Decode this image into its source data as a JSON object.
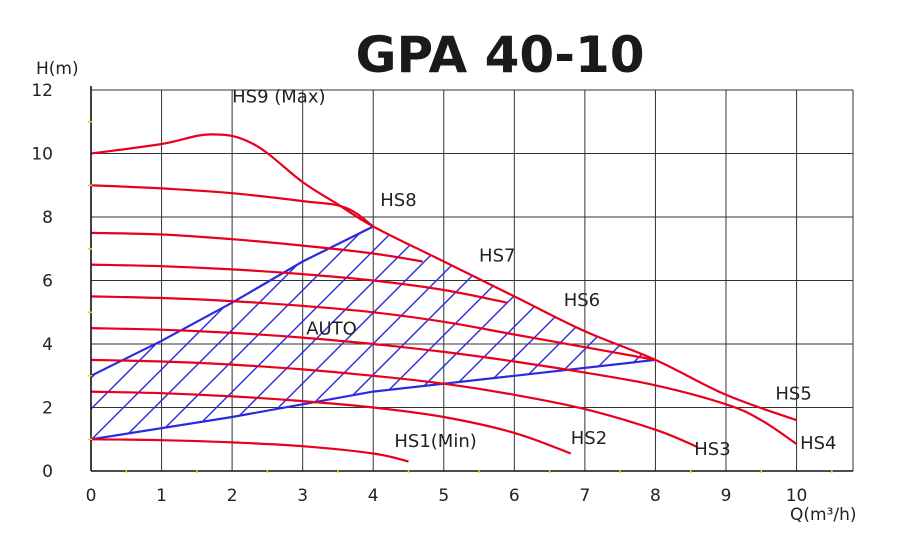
{
  "chart_data": {
    "type": "line",
    "title": "GPA 40-10",
    "xlabel": "Q(m³/h)",
    "ylabel": "H(m)",
    "xlim": [
      0,
      10.8
    ],
    "ylim": [
      0,
      12
    ],
    "x_ticks": [
      0,
      1,
      2,
      3,
      4,
      5,
      6,
      7,
      8,
      9,
      10
    ],
    "y_ticks": [
      0,
      2,
      4,
      6,
      8,
      10,
      12
    ],
    "grid": true,
    "colors": {
      "curves": "#e8001c",
      "auto": "#2a2ae0",
      "grid": "#333333",
      "axis": "#111111",
      "minor_mark": "#e6d800"
    },
    "series": [
      {
        "name": "HS9 (Max)",
        "points": [
          [
            0,
            10
          ],
          [
            1,
            10.3
          ],
          [
            1.7,
            10.6
          ],
          [
            2.3,
            10.3
          ],
          [
            3,
            9.1
          ],
          [
            3.5,
            8.4
          ],
          [
            4,
            7.7
          ],
          [
            5,
            6.6
          ],
          [
            6,
            5.5
          ],
          [
            7,
            4.4
          ],
          [
            8,
            3.5
          ],
          [
            9,
            2.4
          ],
          [
            10,
            1.6
          ]
        ]
      },
      {
        "name": "HS8",
        "points": [
          [
            0,
            9
          ],
          [
            1,
            8.9
          ],
          [
            2,
            8.75
          ],
          [
            3,
            8.5
          ],
          [
            3.6,
            8.3
          ],
          [
            4,
            7.7
          ]
        ]
      },
      {
        "name": "HS7",
        "points": [
          [
            0,
            7.5
          ],
          [
            1,
            7.45
          ],
          [
            2,
            7.3
          ],
          [
            3,
            7.1
          ],
          [
            4,
            6.85
          ],
          [
            4.7,
            6.6
          ]
        ]
      },
      {
        "name": "HS6",
        "points": [
          [
            0,
            6.5
          ],
          [
            1,
            6.45
          ],
          [
            2,
            6.35
          ],
          [
            3,
            6.2
          ],
          [
            4,
            6.0
          ],
          [
            5,
            5.7
          ],
          [
            5.9,
            5.3
          ]
        ]
      },
      {
        "name": "HS5",
        "points": [
          [
            0,
            5.5
          ],
          [
            1,
            5.45
          ],
          [
            2,
            5.35
          ],
          [
            3,
            5.2
          ],
          [
            4,
            5.0
          ],
          [
            5,
            4.7
          ],
          [
            6,
            4.3
          ],
          [
            7,
            3.9
          ],
          [
            8,
            3.5
          ]
        ]
      },
      {
        "name": "HS4",
        "points": [
          [
            0,
            4.5
          ],
          [
            1,
            4.45
          ],
          [
            2,
            4.35
          ],
          [
            3,
            4.2
          ],
          [
            4,
            4.0
          ],
          [
            5,
            3.75
          ],
          [
            6,
            3.45
          ],
          [
            7,
            3.1
          ],
          [
            8,
            2.7
          ],
          [
            9,
            2.1
          ],
          [
            9.5,
            1.6
          ],
          [
            10,
            0.85
          ]
        ]
      },
      {
        "name": "HS3",
        "points": [
          [
            0,
            3.5
          ],
          [
            1,
            3.45
          ],
          [
            2,
            3.35
          ],
          [
            3,
            3.2
          ],
          [
            4,
            3.0
          ],
          [
            5,
            2.75
          ],
          [
            6,
            2.4
          ],
          [
            7,
            1.95
          ],
          [
            8,
            1.3
          ],
          [
            8.6,
            0.75
          ]
        ]
      },
      {
        "name": "HS2",
        "points": [
          [
            0,
            2.5
          ],
          [
            1,
            2.45
          ],
          [
            2,
            2.35
          ],
          [
            3,
            2.2
          ],
          [
            4,
            2.0
          ],
          [
            5,
            1.7
          ],
          [
            6,
            1.2
          ],
          [
            6.8,
            0.55
          ]
        ]
      },
      {
        "name": "HS1(Min)",
        "points": [
          [
            0,
            1
          ],
          [
            1,
            0.97
          ],
          [
            2,
            0.9
          ],
          [
            3,
            0.78
          ],
          [
            4,
            0.55
          ],
          [
            4.5,
            0.3
          ]
        ]
      }
    ],
    "auto_region": {
      "name": "AUTO",
      "lines": [
        {
          "points": [
            [
              0,
              3
            ],
            [
              1,
              4.1
            ],
            [
              2,
              5.3
            ],
            [
              3,
              6.6
            ],
            [
              4,
              7.7
            ]
          ]
        },
        {
          "points": [
            [
              0,
              1
            ],
            [
              2,
              1.7
            ],
            [
              4,
              2.5
            ],
            [
              6,
              3.0
            ],
            [
              8,
              3.5
            ]
          ]
        }
      ]
    },
    "curve_labels": [
      {
        "text": "HS9 (Max)",
        "x": 2.0,
        "y": 11.6
      },
      {
        "text": "HS8",
        "x": 4.1,
        "y": 8.35
      },
      {
        "text": "HS7",
        "x": 5.5,
        "y": 6.6
      },
      {
        "text": "HS6",
        "x": 6.7,
        "y": 5.2
      },
      {
        "text": "HS5",
        "x": 9.7,
        "y": 2.25
      },
      {
        "text": "AUTO",
        "x": 3.05,
        "y": 4.3
      },
      {
        "text": "HS1(Min)",
        "x": 4.3,
        "y": 0.75
      },
      {
        "text": "HS2",
        "x": 6.8,
        "y": 0.85
      },
      {
        "text": "HS3",
        "x": 8.55,
        "y": 0.5
      },
      {
        "text": "HS4",
        "x": 10.05,
        "y": 0.7
      }
    ]
  }
}
